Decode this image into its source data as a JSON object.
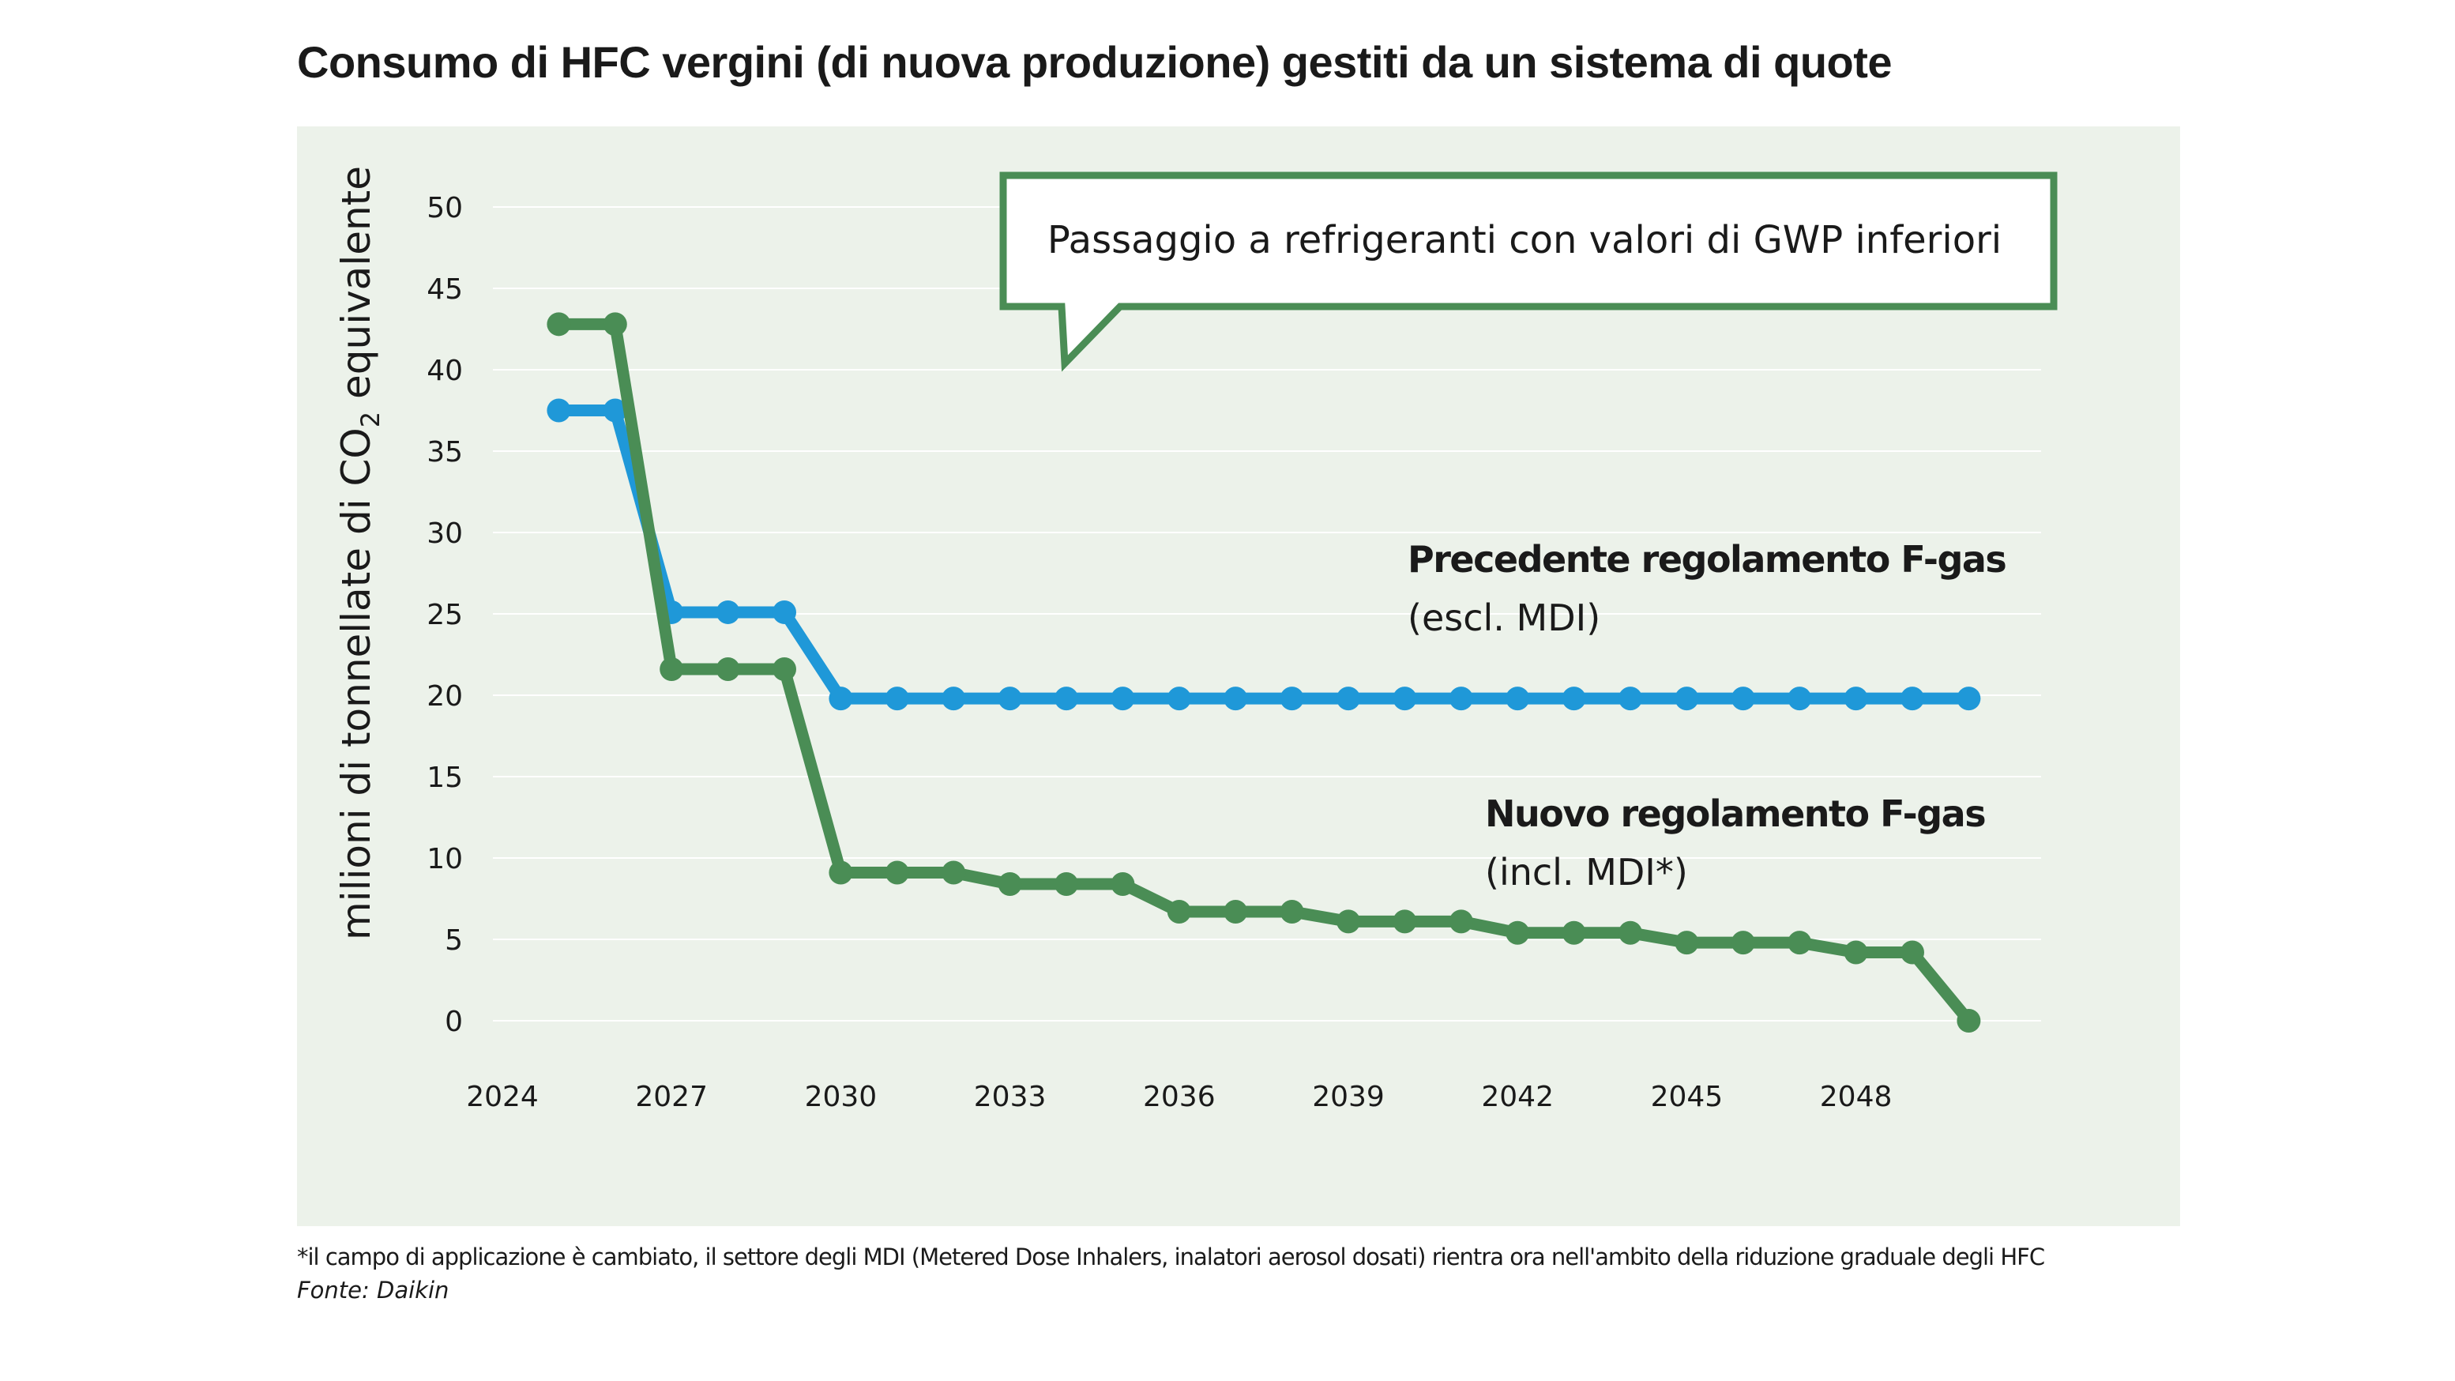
{
  "title": "Consumo di HFC vergini (di nuova produzione) gestiti da un sistema di quote",
  "footnote": "*il campo di applicazione è cambiato, il settore degli MDI (Metered Dose Inhalers, inalatori aerosol dosati) rientra ora nell'ambito della riduzione graduale degli HFC",
  "source": "Fonte: Daikin",
  "callout": "Passaggio a refrigeranti con valori di GWP inferiori",
  "colors": {
    "background": "#ecf2ea",
    "blue": "#1f98d8",
    "green": "#4a8d55",
    "grid": "#ffffff"
  },
  "chart_data": {
    "type": "line",
    "title": "Consumo di HFC vergini (di nuova produzione) gestiti da un sistema di quote",
    "ylabel_main": "milioni di tonnellate di CO",
    "ylabel_sub": "2",
    "ylabel_end": " equivalente",
    "xlabel": "",
    "ylim": [
      0,
      50
    ],
    "yticks": [
      0,
      5,
      10,
      15,
      20,
      25,
      30,
      35,
      40,
      45,
      50
    ],
    "xlim": [
      2024,
      2050
    ],
    "xticks": [
      2024,
      2027,
      2030,
      2033,
      2036,
      2039,
      2042,
      2045,
      2048
    ],
    "grid": true,
    "x": [
      2025,
      2026,
      2027,
      2028,
      2029,
      2030,
      2031,
      2032,
      2033,
      2034,
      2035,
      2036,
      2037,
      2038,
      2039,
      2040,
      2041,
      2042,
      2043,
      2044,
      2045,
      2046,
      2047,
      2048,
      2049,
      2050
    ],
    "series": [
      {
        "name": "Precedente regolamento F-gas",
        "note": "(escl. MDI)",
        "color": "#1f98d8",
        "values": [
          37.5,
          37.5,
          25.1,
          25.1,
          25.1,
          19.8,
          19.8,
          19.8,
          19.8,
          19.8,
          19.8,
          19.8,
          19.8,
          19.8,
          19.8,
          19.8,
          19.8,
          19.8,
          19.8,
          19.8,
          19.8,
          19.8,
          19.8,
          19.8,
          19.8,
          19.8
        ]
      },
      {
        "name": "Nuovo regolamento F-gas",
        "note": "(incl. MDI*)",
        "color": "#4a8d55",
        "values": [
          42.8,
          42.8,
          21.6,
          21.6,
          21.6,
          9.1,
          9.1,
          9.1,
          8.4,
          8.4,
          8.4,
          6.7,
          6.7,
          6.7,
          6.1,
          6.1,
          6.1,
          5.4,
          5.4,
          5.4,
          4.8,
          4.8,
          4.8,
          4.2,
          4.2,
          0
        ]
      }
    ]
  }
}
